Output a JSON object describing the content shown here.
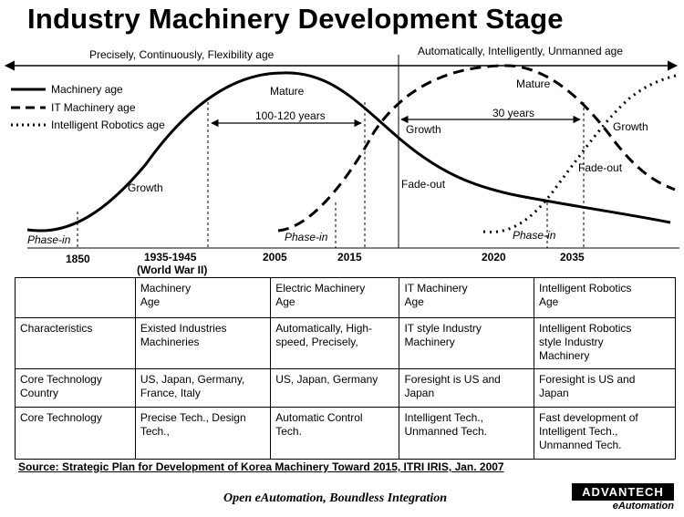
{
  "title": "Industry Machinery Development Stage",
  "timeline": {
    "left_banner": "Precisely, Continuously, Flexibility age",
    "right_banner": "Automatically, Intelligently, Unmanned age"
  },
  "legend": [
    {
      "label": "Machinery age",
      "style": "solid"
    },
    {
      "label": "IT Machinery age",
      "style": "dashed"
    },
    {
      "label": "Intelligent Robotics age",
      "style": "dotted"
    }
  ],
  "annotations": {
    "phase_in_1": "Phase-in",
    "growth_1": "Growth",
    "mature_1": "Mature",
    "span_1": "100-120 years",
    "growth_2": "Growth",
    "fade_out_1": "Fade-out",
    "phase_in_2": "Phase-in",
    "mature_2": "Mature",
    "span_2": "30 years",
    "growth_3": "Growth",
    "fade_out_2": "Fade-out",
    "phase_in_3": "Phase-in"
  },
  "years": {
    "y1850": "1850",
    "y1935": "1935-1945",
    "ww2": "(World War II)",
    "y2005": "2005",
    "y2015": "2015",
    "y2020": "2020",
    "y2035": "2035"
  },
  "table": {
    "header": [
      "",
      "Machinery\nAge",
      "Electric Machinery\nAge",
      "IT Machinery\nAge",
      "Intelligent Robotics\nAge"
    ],
    "rows": [
      [
        "Characteristics",
        "Existed Industries\nMachineries",
        "Automatically, High-\nspeed, Precisely,",
        "IT style Industry\nMachinery",
        "Intelligent Robotics\nstyle Industry\nMachinery"
      ],
      [
        "Core Technology\nCountry",
        "US, Japan, Germany,\nFrance, Italy",
        "US, Japan, Germany",
        "Foresight is US and\nJapan",
        "Foresight is US and\nJapan"
      ],
      [
        "Core Technology",
        "Precise Tech., Design\nTech.,",
        "Automatic Control\nTech.",
        "Intelligent Tech.,\nUnmanned Tech.",
        "Fast development of\nIntelligent Tech.,\nUnmanned Tech."
      ]
    ]
  },
  "source": "Source: Strategic Plan for Development of Korea Machinery Toward 2015, ITRI IRIS, Jan. 2007",
  "footer": {
    "tagline": "Open eAutomation, Boundless Integration",
    "logo_main": "ADVANTECH",
    "logo_sub": "eAutomation"
  }
}
